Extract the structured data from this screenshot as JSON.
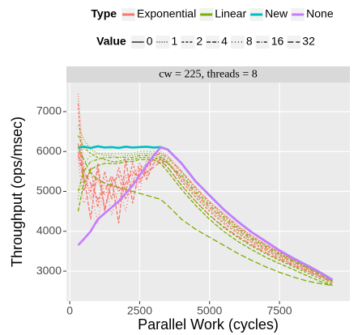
{
  "chart_data": {
    "type": "line",
    "x_label": "Parallel Work (cycles)",
    "y_label": "Throughput (ops/msec)",
    "facet_label": "cw = 225, threads = 8",
    "legend_type": {
      "title": "Type",
      "entries": [
        {
          "name": "Exponential",
          "color": "#F8766D"
        },
        {
          "name": "Linear",
          "color": "#7CAE00"
        },
        {
          "name": "New",
          "color": "#00BFC4"
        },
        {
          "name": "None",
          "color": "#C77CFF"
        }
      ]
    },
    "legend_value": {
      "title": "Value",
      "entries": [
        {
          "name": "0",
          "dash": ""
        },
        {
          "name": "1",
          "dash": "1,2"
        },
        {
          "name": "2",
          "dash": "3,2"
        },
        {
          "name": "4",
          "dash": "5,2"
        },
        {
          "name": "8",
          "dash": "1,3"
        },
        {
          "name": "16",
          "dash": "4,2,1,2"
        },
        {
          "name": "32",
          "dash": "7,3"
        }
      ]
    },
    "x": [
      300,
      500,
      750,
      1000,
      1250,
      1500,
      1750,
      2000,
      2250,
      2500,
      2750,
      3000,
      3250,
      3500,
      4000,
      4500,
      5000,
      5500,
      6000,
      6500,
      7000,
      7500,
      8000,
      8500,
      9000,
      9400
    ],
    "series": [
      {
        "color": "#F8766D",
        "dash": "1,2",
        "values": [
          7450,
          5600,
          4800,
          5300,
          4900,
          5200,
          4700,
          5400,
          5100,
          5500,
          5700,
          5850,
          6000,
          5900,
          5500,
          5100,
          4750,
          4450,
          4150,
          3900,
          3680,
          3480,
          3290,
          3110,
          2930,
          2780
        ]
      },
      {
        "color": "#F8766D",
        "dash": "3,2",
        "values": [
          7200,
          5000,
          5600,
          4600,
          5500,
          4800,
          5600,
          5000,
          5700,
          5200,
          5600,
          5800,
          5850,
          5750,
          5250,
          4850,
          4500,
          4200,
          3950,
          3720,
          3520,
          3340,
          3170,
          3010,
          2850,
          2720
        ]
      },
      {
        "color": "#F8766D",
        "dash": "5,2",
        "values": [
          6000,
          5400,
          4300,
          5700,
          4500,
          5300,
          4200,
          5800,
          4700,
          5600,
          5300,
          5700,
          5800,
          5700,
          5350,
          4950,
          4600,
          4300,
          4030,
          3790,
          3580,
          3400,
          3230,
          3060,
          2890,
          2750
        ]
      },
      {
        "color": "#F8766D",
        "dash": "1,3",
        "values": [
          5800,
          4700,
          5100,
          4200,
          5300,
          4400,
          5100,
          4500,
          5400,
          5000,
          5800,
          5750,
          5900,
          5800,
          5450,
          5050,
          4700,
          4400,
          4110,
          3860,
          3650,
          3450,
          3270,
          3100,
          2920,
          2770
        ]
      },
      {
        "color": "#F8766D",
        "dash": "4,2,1,2",
        "values": [
          5900,
          5300,
          5000,
          5500,
          4600,
          5200,
          5400,
          4800,
          5200,
          5700,
          5400,
          5900,
          5950,
          5850,
          5500,
          5100,
          4730,
          4420,
          4130,
          3880,
          3660,
          3470,
          3280,
          3100,
          2930,
          2770
        ]
      },
      {
        "color": "#F8766D",
        "dash": "7,3",
        "values": [
          6200,
          5500,
          5200,
          4800,
          5000,
          5400,
          5000,
          5200,
          5500,
          5300,
          5500,
          5600,
          5750,
          5600,
          5150,
          4750,
          4400,
          4120,
          3880,
          3660,
          3470,
          3300,
          3140,
          2990,
          2840,
          2710
        ]
      },
      {
        "color": "#7CAE00",
        "dash": "1,2",
        "values": [
          6650,
          6300,
          6050,
          5950,
          5900,
          5900,
          5850,
          5900,
          5900,
          5950,
          5950,
          5950,
          5900,
          5750,
          5300,
          4900,
          4550,
          4250,
          3980,
          3750,
          3550,
          3370,
          3200,
          3030,
          2860,
          2720
        ]
      },
      {
        "color": "#7CAE00",
        "dash": "3,2",
        "values": [
          6400,
          6100,
          5950,
          5850,
          5800,
          5750,
          5750,
          5800,
          5800,
          5850,
          5850,
          5850,
          5800,
          5600,
          5150,
          4750,
          4400,
          4100,
          3850,
          3630,
          3440,
          3270,
          3110,
          2950,
          2790,
          2670
        ]
      },
      {
        "color": "#7CAE00",
        "dash": "5,2",
        "values": [
          4500,
          5200,
          5550,
          5650,
          5700,
          5700,
          5700,
          5750,
          5750,
          5800,
          5800,
          5800,
          5700,
          5500,
          5050,
          4650,
          4300,
          4000,
          3750,
          3540,
          3350,
          3190,
          3040,
          2880,
          2730,
          2640
        ]
      },
      {
        "color": "#7CAE00",
        "dash": "1,3",
        "values": [
          4800,
          5700,
          5900,
          5950,
          5950,
          5950,
          5950,
          5950,
          5950,
          6000,
          6000,
          6000,
          5950,
          5850,
          5500,
          5050,
          4700,
          4390,
          4100,
          3850,
          3640,
          3450,
          3270,
          3090,
          2920,
          2760
        ]
      },
      {
        "color": "#7CAE00",
        "dash": "4,2,1,2",
        "values": [
          5000,
          5500,
          5750,
          5800,
          5850,
          5850,
          5850,
          5850,
          5850,
          5900,
          5900,
          5900,
          5850,
          5700,
          5400,
          5000,
          4650,
          4350,
          4070,
          3830,
          3620,
          3430,
          3250,
          3080,
          2910,
          2750
        ]
      },
      {
        "color": "#7CAE00",
        "dash": "7,3",
        "values": [
          6100,
          5800,
          5450,
          5300,
          5200,
          5150,
          5100,
          5050,
          5000,
          4950,
          4900,
          4850,
          4800,
          4650,
          4300,
          4050,
          3850,
          3650,
          3450,
          3270,
          3110,
          2970,
          2850,
          2750,
          2680,
          2640
        ]
      },
      {
        "color": "#00BFC4",
        "dash": "",
        "values": [
          6100,
          6120,
          6090,
          6130,
          6100,
          6110,
          6090,
          6120,
          6100,
          6110,
          6120,
          6100,
          6110,
          6050,
          5700,
          5250,
          4900,
          4550,
          4250,
          3980,
          3750,
          3520,
          3320,
          3140,
          2950,
          2780
        ]
      },
      {
        "color": "#C77CFF",
        "dash": "",
        "values": [
          3650,
          3800,
          4000,
          4300,
          4450,
          4600,
          4750,
          4950,
          5150,
          5400,
          5650,
          5900,
          6100,
          6050,
          5700,
          5250,
          4900,
          4550,
          4250,
          3980,
          3750,
          3520,
          3320,
          3140,
          2950,
          2780
        ]
      }
    ],
    "xlim": [
      -120,
      10020
    ],
    "xticks": [
      0,
      2500,
      5000,
      7500
    ],
    "ylim": [
      2250,
      7730
    ],
    "yticks": [
      3000,
      4000,
      5000,
      6000,
      7000
    ],
    "grid": true
  }
}
